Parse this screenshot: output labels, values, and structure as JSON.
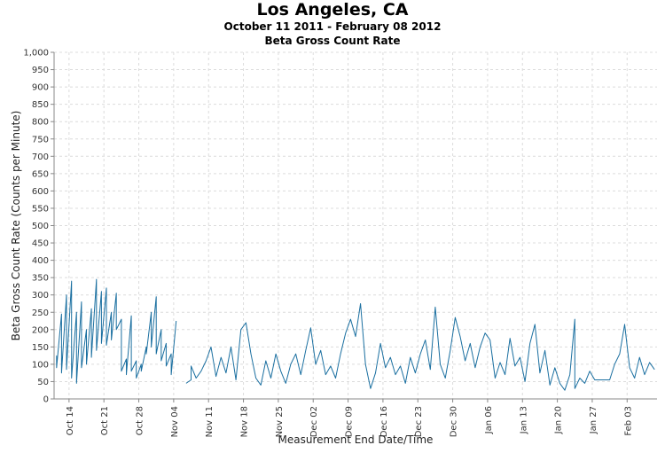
{
  "title": "Los Angeles, CA",
  "subtitle1": "October 11 2011 - February 08 2012",
  "subtitle2": "Beta Gross Count Rate",
  "chart_data": {
    "type": "line",
    "xlabel": "Measurement End Date/Time",
    "ylabel": "Beta Gross Count Rate (Counts per Minute)",
    "ylim": [
      0,
      1000
    ],
    "yticks": [
      "0",
      "50",
      "100",
      "150",
      "200",
      "250",
      "300",
      "350",
      "400",
      "450",
      "500",
      "550",
      "600",
      "650",
      "700",
      "750",
      "800",
      "850",
      "900",
      "950",
      "1,000"
    ],
    "xdomain": [
      "2011-10-11",
      "2012-02-08"
    ],
    "xticks": [
      {
        "date": "2011-10-14",
        "label": "Oct 14"
      },
      {
        "date": "2011-10-21",
        "label": "Oct 21"
      },
      {
        "date": "2011-10-28",
        "label": "Oct 28"
      },
      {
        "date": "2011-11-04",
        "label": "Nov 04"
      },
      {
        "date": "2011-11-11",
        "label": "Nov 11"
      },
      {
        "date": "2011-11-18",
        "label": "Nov 18"
      },
      {
        "date": "2011-11-25",
        "label": "Nov 25"
      },
      {
        "date": "2011-12-02",
        "label": "Dec 02"
      },
      {
        "date": "2011-12-09",
        "label": "Dec 09"
      },
      {
        "date": "2011-12-16",
        "label": "Dec 16"
      },
      {
        "date": "2011-12-23",
        "label": "Dec 23"
      },
      {
        "date": "2011-12-30",
        "label": "Dec 30"
      },
      {
        "date": "2012-01-06",
        "label": "Jan 06"
      },
      {
        "date": "2012-01-13",
        "label": "Jan 13"
      },
      {
        "date": "2012-01-20",
        "label": "Jan 20"
      },
      {
        "date": "2012-01-27",
        "label": "Jan 27"
      },
      {
        "date": "2012-02-03",
        "label": "Feb 03"
      }
    ],
    "grid": true,
    "color": "#1a6fa0",
    "series": [
      {
        "segments": [
          [
            [
              "2011-10-11",
              125
            ],
            [
              "2011-10-11",
              90
            ],
            [
              "2011-10-12",
              245
            ],
            [
              "2011-10-12",
              75
            ],
            [
              "2011-10-13",
              300
            ],
            [
              "2011-10-13",
              85
            ],
            [
              "2011-10-14",
              340
            ],
            [
              "2011-10-14",
              60
            ],
            [
              "2011-10-15",
              250
            ],
            [
              "2011-10-15",
              45
            ],
            [
              "2011-10-16",
              280
            ],
            [
              "2011-10-16",
              90
            ],
            [
              "2011-10-17",
              200
            ],
            [
              "2011-10-17",
              100
            ],
            [
              "2011-10-18",
              260
            ],
            [
              "2011-10-18",
              120
            ],
            [
              "2011-10-19",
              345
            ],
            [
              "2011-10-19",
              140
            ],
            [
              "2011-10-20",
              310
            ],
            [
              "2011-10-20",
              160
            ],
            [
              "2011-10-21",
              320
            ],
            [
              "2011-10-21",
              155
            ],
            [
              "2011-10-22",
              250
            ],
            [
              "2011-10-22",
              170
            ],
            [
              "2011-10-23",
              305
            ],
            [
              "2011-10-23",
              200
            ],
            [
              "2011-10-24",
              230
            ],
            [
              "2011-10-24",
              80
            ],
            [
              "2011-10-25",
              115
            ],
            [
              "2011-10-25",
              70
            ],
            [
              "2011-10-26",
              240
            ],
            [
              "2011-10-26",
              80
            ],
            [
              "2011-10-27",
              110
            ],
            [
              "2011-10-27",
              60
            ],
            [
              "2011-10-28",
              100
            ],
            [
              "2011-10-28",
              80
            ],
            [
              "2011-10-29",
              150
            ],
            [
              "2011-10-29",
              130
            ],
            [
              "2011-10-30",
              250
            ],
            [
              "2011-10-30",
              150
            ],
            [
              "2011-10-31",
              295
            ],
            [
              "2011-10-31",
              130
            ],
            [
              "2011-11-01",
              200
            ],
            [
              "2011-11-01",
              110
            ],
            [
              "2011-11-02",
              160
            ],
            [
              "2011-11-02",
              95
            ],
            [
              "2011-11-03",
              130
            ],
            [
              "2011-11-03",
              70
            ],
            [
              "2011-11-04",
              225
            ]
          ],
          [
            [
              "2011-11-06",
              45
            ],
            [
              "2011-11-07",
              55
            ],
            [
              "2011-11-07",
              95
            ],
            [
              "2011-11-08",
              60
            ],
            [
              "2011-11-09",
              80
            ],
            [
              "2011-11-10",
              110
            ],
            [
              "2011-11-11",
              150
            ],
            [
              "2011-11-12",
              65
            ],
            [
              "2011-11-13",
              120
            ],
            [
              "2011-11-14",
              75
            ],
            [
              "2011-11-15",
              150
            ],
            [
              "2011-11-16",
              55
            ],
            [
              "2011-11-17",
              200
            ],
            [
              "2011-11-18",
              220
            ],
            [
              "2011-11-19",
              130
            ],
            [
              "2011-11-20",
              60
            ],
            [
              "2011-11-21",
              40
            ],
            [
              "2011-11-22",
              110
            ],
            [
              "2011-11-23",
              60
            ],
            [
              "2011-11-24",
              130
            ],
            [
              "2011-11-25",
              80
            ],
            [
              "2011-11-26",
              45
            ],
            [
              "2011-11-27",
              100
            ],
            [
              "2011-11-28",
              130
            ],
            [
              "2011-11-29",
              70
            ],
            [
              "2011-11-30",
              140
            ],
            [
              "2011-12-01",
              205
            ],
            [
              "2011-12-02",
              100
            ],
            [
              "2011-12-03",
              140
            ],
            [
              "2011-12-04",
              70
            ],
            [
              "2011-12-05",
              95
            ],
            [
              "2011-12-06",
              60
            ],
            [
              "2011-12-07",
              130
            ],
            [
              "2011-12-08",
              190
            ],
            [
              "2011-12-09",
              230
            ],
            [
              "2011-12-10",
              180
            ],
            [
              "2011-12-11",
              275
            ],
            [
              "2011-12-12",
              100
            ],
            [
              "2011-12-13",
              30
            ],
            [
              "2011-12-14",
              75
            ],
            [
              "2011-12-15",
              160
            ],
            [
              "2011-12-16",
              90
            ],
            [
              "2011-12-17",
              120
            ],
            [
              "2011-12-18",
              70
            ],
            [
              "2011-12-19",
              95
            ],
            [
              "2011-12-20",
              45
            ],
            [
              "2011-12-21",
              120
            ],
            [
              "2011-12-22",
              75
            ],
            [
              "2011-12-23",
              130
            ],
            [
              "2011-12-24",
              170
            ],
            [
              "2011-12-25",
              85
            ],
            [
              "2011-12-26",
              265
            ],
            [
              "2011-12-27",
              100
            ],
            [
              "2011-12-28",
              60
            ],
            [
              "2011-12-29",
              140
            ],
            [
              "2011-12-30",
              235
            ],
            [
              "2011-12-31",
              180
            ],
            [
              "2012-01-01",
              110
            ],
            [
              "2012-01-02",
              160
            ],
            [
              "2012-01-03",
              90
            ],
            [
              "2012-01-04",
              150
            ],
            [
              "2012-01-05",
              190
            ],
            [
              "2012-01-06",
              170
            ],
            [
              "2012-01-07",
              60
            ],
            [
              "2012-01-08",
              105
            ],
            [
              "2012-01-09",
              70
            ],
            [
              "2012-01-10",
              175
            ],
            [
              "2012-01-11",
              95
            ],
            [
              "2012-01-12",
              120
            ],
            [
              "2012-01-13",
              50
            ],
            [
              "2012-01-14",
              160
            ],
            [
              "2012-01-15",
              215
            ],
            [
              "2012-01-16",
              75
            ],
            [
              "2012-01-17",
              140
            ],
            [
              "2012-01-18",
              40
            ],
            [
              "2012-01-19",
              90
            ],
            [
              "2012-01-20",
              45
            ],
            [
              "2012-01-21",
              25
            ],
            [
              "2012-01-22",
              70
            ],
            [
              "2012-01-23",
              230
            ],
            [
              "2012-01-23",
              30
            ],
            [
              "2012-01-24",
              60
            ],
            [
              "2012-01-25",
              45
            ],
            [
              "2012-01-26",
              80
            ],
            [
              "2012-01-27",
              55
            ],
            [
              "2012-01-28",
              55
            ],
            [
              "2012-01-29",
              55
            ],
            [
              "2012-01-30",
              55
            ],
            [
              "2012-01-31",
              100
            ],
            [
              "2012-02-01",
              130
            ],
            [
              "2012-02-02",
              215
            ],
            [
              "2012-02-03",
              90
            ],
            [
              "2012-02-04",
              60
            ],
            [
              "2012-02-05",
              120
            ],
            [
              "2012-02-06",
              70
            ],
            [
              "2012-02-07",
              105
            ],
            [
              "2012-02-08",
              85
            ]
          ]
        ]
      }
    ]
  }
}
